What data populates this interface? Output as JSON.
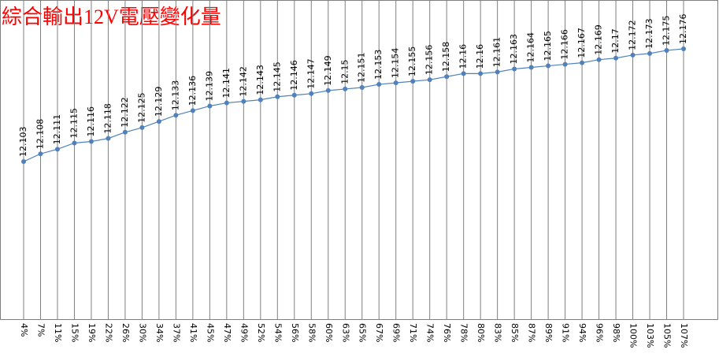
{
  "chart_data": {
    "type": "line",
    "title": "綜合輸出12V電壓變化量",
    "categories": [
      "4%",
      "7%",
      "11%",
      "15%",
      "19%",
      "22%",
      "26%",
      "30%",
      "34%",
      "37%",
      "41%",
      "45%",
      "47%",
      "49%",
      "52%",
      "54%",
      "56%",
      "58%",
      "60%",
      "63%",
      "65%",
      "67%",
      "69%",
      "71%",
      "74%",
      "76%",
      "78%",
      "80%",
      "83%",
      "85%",
      "87%",
      "89%",
      "91%",
      "94%",
      "96%",
      "98%",
      "100%",
      "103%",
      "105%",
      "107%"
    ],
    "series": [
      {
        "color": "#4f81bd",
        "values": [
          12.103,
          12.108,
          12.111,
          12.115,
          12.116,
          12.118,
          12.122,
          12.125,
          12.129,
          12.133,
          12.136,
          12.139,
          12.141,
          12.142,
          12.143,
          12.145,
          12.146,
          12.147,
          12.149,
          12.15,
          12.151,
          12.153,
          12.154,
          12.155,
          12.156,
          12.158,
          12.16,
          12.16,
          12.161,
          12.163,
          12.164,
          12.165,
          12.166,
          12.167,
          12.169,
          12.17,
          12.172,
          12.173,
          12.175,
          12.176
        ]
      }
    ],
    "grid": true
  }
}
